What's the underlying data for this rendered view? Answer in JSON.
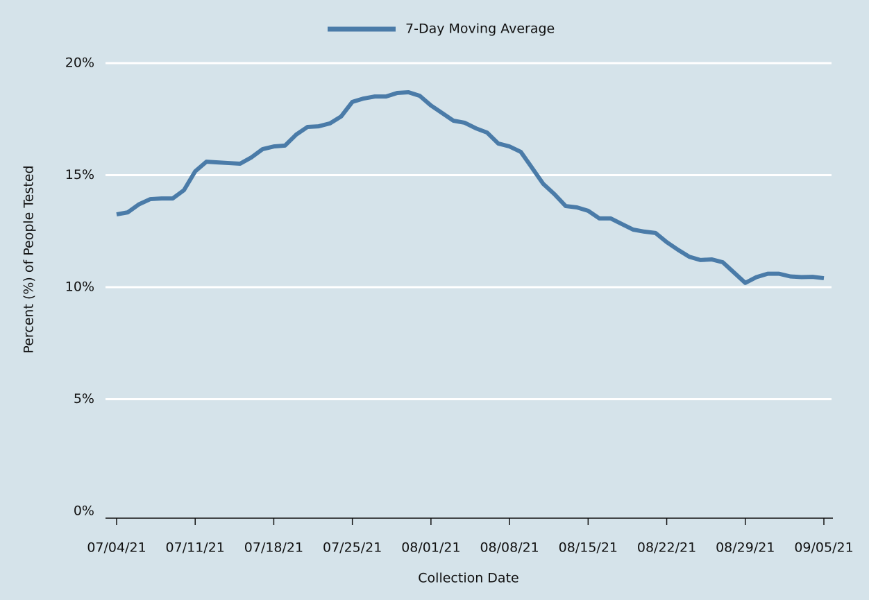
{
  "chart_data": {
    "type": "line",
    "legend_position": "top",
    "grid": true,
    "x_label": "Collection Date",
    "y_label": "Percent (%) of People Tested",
    "categories": [
      "07/04/21",
      "07/05/21",
      "07/06/21",
      "07/07/21",
      "07/08/21",
      "07/09/21",
      "07/10/21",
      "07/11/21",
      "07/12/21",
      "07/13/21",
      "07/14/21",
      "07/15/21",
      "07/16/21",
      "07/17/21",
      "07/18/21",
      "07/19/21",
      "07/20/21",
      "07/21/21",
      "07/22/21",
      "07/23/21",
      "07/24/21",
      "07/25/21",
      "07/26/21",
      "07/27/21",
      "07/28/21",
      "07/29/21",
      "07/30/21",
      "07/31/21",
      "08/01/21",
      "08/02/21",
      "08/03/21",
      "08/04/21",
      "08/05/21",
      "08/06/21",
      "08/07/21",
      "08/08/21",
      "08/09/21",
      "08/10/21",
      "08/11/21",
      "08/12/21",
      "08/13/21",
      "08/14/21",
      "08/15/21",
      "08/16/21",
      "08/17/21",
      "08/18/21",
      "08/19/21",
      "08/20/21",
      "08/21/21",
      "08/22/21",
      "08/23/21",
      "08/24/21",
      "08/25/21",
      "08/26/21",
      "08/27/21",
      "08/28/21",
      "08/29/21",
      "08/30/21",
      "08/31/21",
      "09/01/21",
      "09/02/21",
      "09/03/21",
      "09/04/21",
      "09/05/21"
    ],
    "xtick_every": 7,
    "series": [
      {
        "name": "7-Day Moving Average",
        "color": "#4a7ba8",
        "values": [
          13.25,
          13.34,
          13.7,
          13.93,
          13.96,
          13.96,
          14.33,
          15.17,
          15.6,
          15.57,
          15.54,
          15.51,
          15.79,
          16.16,
          16.28,
          16.32,
          16.81,
          17.15,
          17.18,
          17.31,
          17.62,
          18.27,
          18.42,
          18.51,
          18.51,
          18.67,
          18.7,
          18.54,
          18.11,
          17.77,
          17.43,
          17.34,
          17.09,
          16.9,
          16.41,
          16.28,
          16.04,
          15.33,
          14.61,
          14.15,
          13.62,
          13.56,
          13.41,
          13.07,
          13.07,
          12.82,
          12.57,
          12.48,
          12.42,
          12.01,
          11.67,
          11.36,
          11.21,
          11.24,
          11.11,
          10.65,
          10.19,
          10.45,
          10.6,
          10.6,
          10.48,
          10.45,
          10.46,
          10.4
        ]
      }
    ],
    "ylim": [
      0,
      20
    ],
    "yticks": [
      {
        "value": 0,
        "label": "0%"
      },
      {
        "value": 5,
        "label": "5%"
      },
      {
        "value": 10,
        "label": "10%"
      },
      {
        "value": 15,
        "label": "15%"
      },
      {
        "value": 20,
        "label": "20%"
      }
    ]
  }
}
